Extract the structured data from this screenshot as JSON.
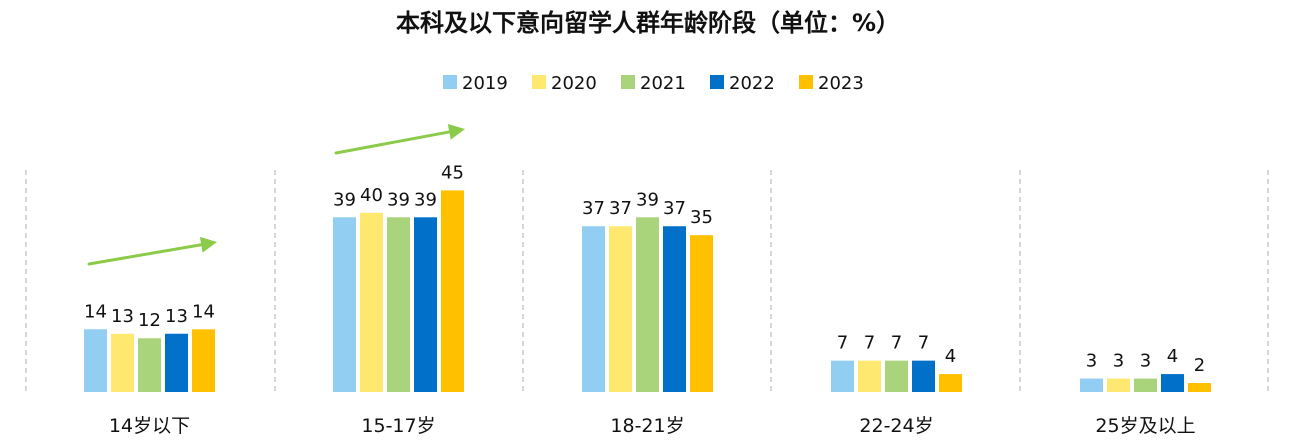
{
  "chart_data": {
    "type": "bar",
    "title": "本科及以下意向留学人群年龄阶段（单位：%）",
    "categories": [
      "14岁以下",
      "15-17岁",
      "18-21岁",
      "22-24岁",
      "25岁及以上"
    ],
    "series": [
      {
        "name": "2019",
        "color": "#92CDF2",
        "values": [
          14,
          39,
          37,
          7,
          3
        ]
      },
      {
        "name": "2020",
        "color": "#FFE870",
        "values": [
          13,
          40,
          37,
          7,
          3
        ]
      },
      {
        "name": "2021",
        "color": "#A9D47B",
        "values": [
          12,
          39,
          39,
          7,
          3
        ]
      },
      {
        "name": "2022",
        "color": "#0070C8",
        "values": [
          13,
          39,
          37,
          7,
          4
        ]
      },
      {
        "name": "2023",
        "color": "#FFC000",
        "values": [
          14,
          45,
          35,
          4,
          2
        ]
      }
    ],
    "ylim": [
      0,
      50
    ],
    "grid": false,
    "legend_position": "top-center",
    "annotations": [
      {
        "type": "trend-arrow",
        "category": "14岁以下",
        "color": "#8CCB4A"
      },
      {
        "type": "trend-arrow",
        "category": "15-17岁",
        "color": "#8CCB4A"
      }
    ]
  }
}
